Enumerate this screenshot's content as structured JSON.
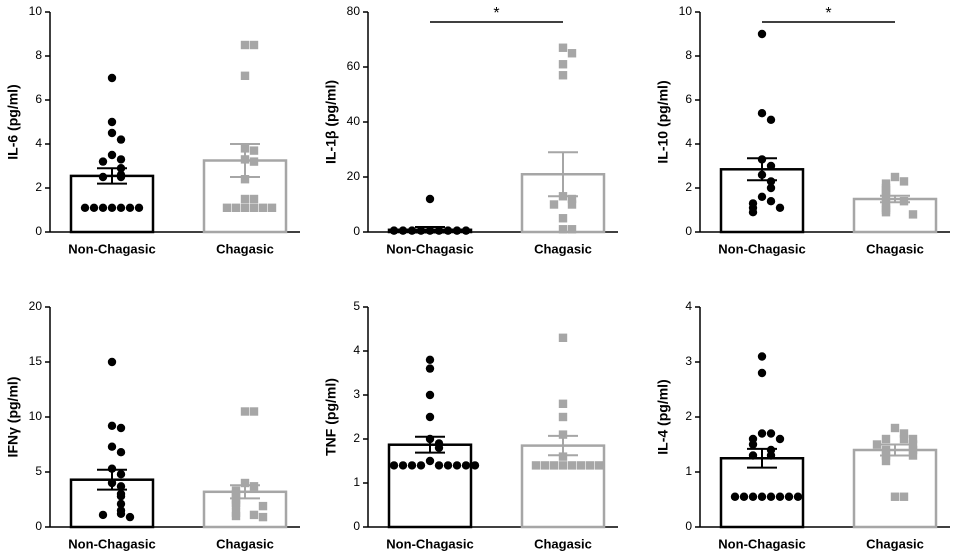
{
  "chart_data": [
    {
      "type": "bar",
      "ylabel": "IL-6 (pg/ml)",
      "categories": [
        "Non-Chagasic",
        "Chagasic"
      ],
      "colors": [
        "#000000",
        "#a6a6a6"
      ],
      "markers": [
        "circle",
        "square"
      ],
      "values": [
        2.55,
        3.25
      ],
      "errors": [
        0.35,
        0.75
      ],
      "points": [
        [
          7.0,
          5.0,
          4.5,
          4.2,
          3.5,
          3.3,
          3.2,
          2.9,
          2.6,
          2.5,
          2.5,
          1.1,
          1.1,
          1.1,
          1.1,
          1.1,
          1.1,
          1.1
        ],
        [
          8.5,
          8.5,
          7.1,
          3.8,
          3.7,
          3.3,
          3.2,
          2.4,
          1.5,
          1.5,
          1.1,
          1.1,
          1.1,
          1.1,
          1.1,
          1.1
        ]
      ],
      "ylim": [
        0,
        10
      ],
      "yticks": [
        0,
        2,
        4,
        6,
        8,
        10
      ]
    },
    {
      "type": "bar",
      "ylabel": "IL-1β (pg/ml)",
      "categories": [
        "Non-Chagasic",
        "Chagasic"
      ],
      "colors": [
        "#000000",
        "#a6a6a6"
      ],
      "markers": [
        "circle",
        "square"
      ],
      "values": [
        0.8,
        21
      ],
      "errors": [
        1.0,
        8
      ],
      "points": [
        [
          12,
          0.5,
          0.5,
          0.5,
          0.5,
          0.5,
          0.5,
          0.5,
          0.5,
          0.5
        ],
        [
          67,
          65,
          61,
          57,
          13,
          12,
          10,
          10,
          5,
          1,
          1
        ]
      ],
      "ylim": [
        0,
        80
      ],
      "yticks": [
        0,
        20,
        40,
        60,
        80
      ],
      "annotation": "*"
    },
    {
      "type": "bar",
      "ylabel": "IL-10 (pg/ml)",
      "categories": [
        "Non-Chagasic",
        "Chagasic"
      ],
      "colors": [
        "#000000",
        "#a6a6a6"
      ],
      "markers": [
        "circle",
        "square"
      ],
      "values": [
        2.85,
        1.5
      ],
      "errors": [
        0.5,
        0.15
      ],
      "points": [
        [
          9.0,
          5.4,
          5.1,
          3.3,
          3.0,
          2.6,
          2.3,
          2.0,
          1.6,
          1.4,
          1.3,
          1.1,
          1.1,
          0.9
        ],
        [
          2.5,
          2.3,
          2.2,
          2.0,
          1.9,
          1.8,
          1.6,
          1.4,
          1.3,
          1.1,
          1.0,
          0.9,
          0.8
        ]
      ],
      "ylim": [
        0,
        10
      ],
      "yticks": [
        0,
        2,
        4,
        6,
        8,
        10
      ],
      "annotation": "*"
    },
    {
      "type": "bar",
      "ylabel": "IFNγ (pg/ml)",
      "categories": [
        "Non-Chagasic",
        "Chagasic"
      ],
      "colors": [
        "#000000",
        "#a6a6a6"
      ],
      "markers": [
        "circle",
        "square"
      ],
      "values": [
        4.3,
        3.2
      ],
      "errors": [
        0.9,
        0.6
      ],
      "points": [
        [
          15.0,
          9.2,
          9.0,
          7.3,
          6.8,
          5.3,
          4.8,
          4.0,
          3.7,
          3.0,
          2.8,
          2.1,
          1.5,
          1.2,
          1.1,
          0.9
        ],
        [
          10.5,
          10.5,
          4.0,
          3.7,
          3.3,
          3.0,
          2.9,
          2.5,
          2.2,
          2.0,
          1.9,
          1.3,
          1.1,
          1.0,
          0.9
        ]
      ],
      "ylim": [
        0,
        20
      ],
      "yticks": [
        0,
        5,
        10,
        15,
        20
      ]
    },
    {
      "type": "bar",
      "ylabel": "TNF (pg/ml)",
      "categories": [
        "Non-Chagasic",
        "Chagasic"
      ],
      "colors": [
        "#000000",
        "#a6a6a6"
      ],
      "markers": [
        "circle",
        "square"
      ],
      "values": [
        1.87,
        1.85
      ],
      "errors": [
        0.18,
        0.22
      ],
      "points": [
        [
          3.8,
          3.6,
          3.0,
          2.5,
          2.0,
          1.9,
          1.8,
          1.5,
          1.4,
          1.4,
          1.4,
          1.4,
          1.4,
          1.4,
          1.4,
          1.4,
          1.4
        ],
        [
          4.3,
          2.8,
          2.5,
          2.1,
          1.6,
          1.4,
          1.4,
          1.4,
          1.4,
          1.4,
          1.4,
          1.4,
          1.4
        ]
      ],
      "ylim": [
        0,
        5
      ],
      "yticks": [
        0,
        1,
        2,
        3,
        4,
        5
      ]
    },
    {
      "type": "bar",
      "ylabel": "IL-4 (pg/ml)",
      "categories": [
        "Non-Chagasic",
        "Chagasic"
      ],
      "colors": [
        "#000000",
        "#a6a6a6"
      ],
      "markers": [
        "circle",
        "square"
      ],
      "values": [
        1.25,
        1.4
      ],
      "errors": [
        0.17,
        0.1
      ],
      "points": [
        [
          3.1,
          2.8,
          1.7,
          1.7,
          1.6,
          1.6,
          1.5,
          1.4,
          1.3,
          1.3,
          0.55,
          0.55,
          0.55,
          0.55,
          0.55,
          0.55,
          0.55,
          0.55
        ],
        [
          1.8,
          1.7,
          1.6,
          1.6,
          1.6,
          1.5,
          1.5,
          1.4,
          1.4,
          1.3,
          1.3,
          1.2,
          0.55,
          0.55
        ]
      ],
      "ylim": [
        0,
        4
      ],
      "yticks": [
        0,
        1,
        2,
        3,
        4
      ]
    }
  ]
}
